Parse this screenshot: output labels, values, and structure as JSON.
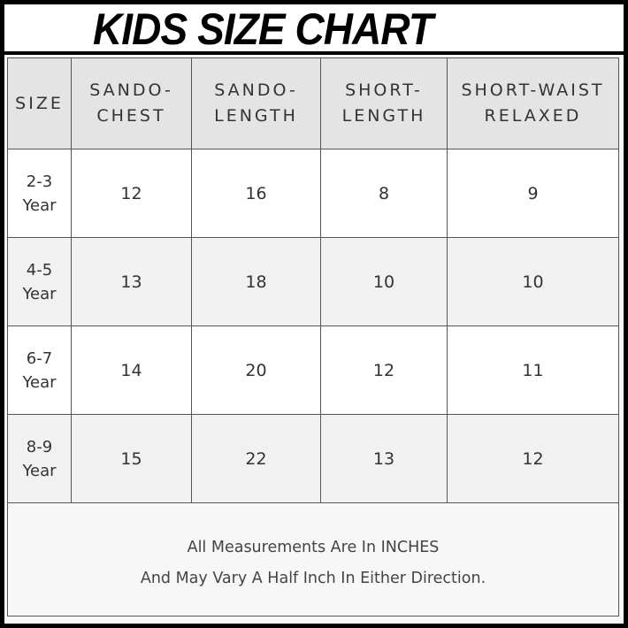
{
  "title": "KIDS SIZE CHART",
  "chart_data": {
    "type": "table",
    "title": "KIDS SIZE CHART",
    "columns": [
      "SIZE",
      "SANDO-\nCHEST",
      "SANDO-\nLENGTH",
      "SHORT-\nLENGTH",
      "SHORT-WAIST\nRELAXED"
    ],
    "rows": [
      {
        "size": "2-3\nYear",
        "values": [
          12,
          16,
          8,
          9
        ]
      },
      {
        "size": "4-5\nYear",
        "values": [
          13,
          18,
          10,
          10
        ]
      },
      {
        "size": "6-7\nYear",
        "values": [
          14,
          20,
          12,
          11
        ]
      },
      {
        "size": "8-9\nYear",
        "values": [
          15,
          22,
          13,
          12
        ]
      }
    ]
  },
  "footer": {
    "line1": "All Measurements Are In INCHES",
    "line2": "And May Vary A Half Inch In Either Direction."
  }
}
